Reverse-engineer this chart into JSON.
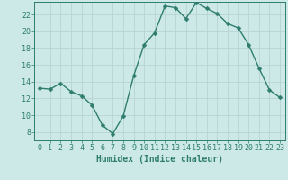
{
  "x": [
    0,
    1,
    2,
    3,
    4,
    5,
    6,
    7,
    8,
    9,
    10,
    11,
    12,
    13,
    14,
    15,
    16,
    17,
    18,
    19,
    20,
    21,
    22,
    23
  ],
  "y": [
    13.2,
    13.1,
    13.8,
    12.8,
    12.3,
    11.2,
    8.8,
    7.8,
    9.9,
    14.7,
    18.4,
    19.8,
    23.0,
    22.8,
    21.5,
    23.4,
    22.7,
    22.1,
    20.9,
    20.4,
    18.4,
    15.6,
    13.0,
    12.1
  ],
  "line_color": "#2e7d6e",
  "marker": "D",
  "marker_size": 2.5,
  "bg_color": "#cce9e7",
  "grid_color": "#b8d4d2",
  "axis_color": "#2e7d6e",
  "xlabel": "Humidex (Indice chaleur)",
  "xlim": [
    -0.5,
    23.5
  ],
  "ylim": [
    7,
    23.5
  ],
  "yticks": [
    8,
    10,
    12,
    14,
    16,
    18,
    20,
    22
  ],
  "xticks": [
    0,
    1,
    2,
    3,
    4,
    5,
    6,
    7,
    8,
    9,
    10,
    11,
    12,
    13,
    14,
    15,
    16,
    17,
    18,
    19,
    20,
    21,
    22,
    23
  ],
  "xlabel_fontsize": 7.0,
  "tick_fontsize": 6.0,
  "line_width": 1.0,
  "text_color": "#2e7d6e"
}
